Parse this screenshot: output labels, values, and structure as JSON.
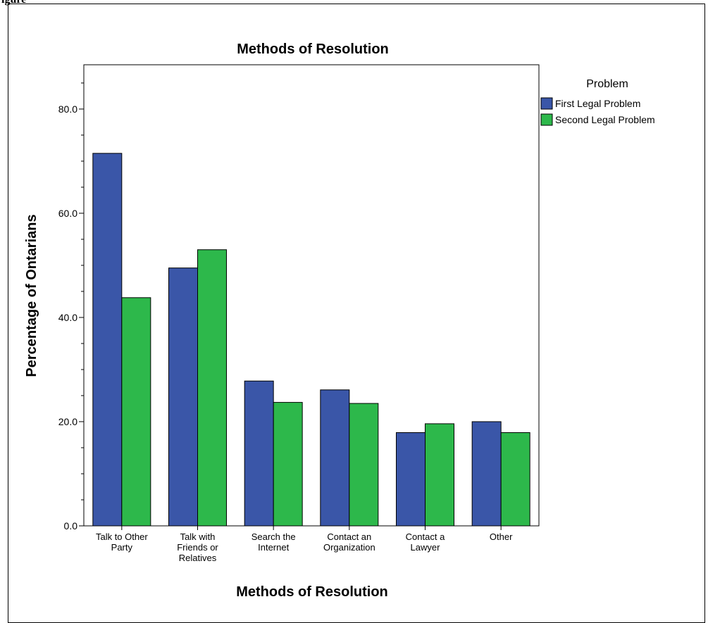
{
  "figure": {
    "caption": "igure"
  },
  "chart_data": {
    "type": "bar",
    "title": "Methods of Resolution",
    "xlabel": "Methods of Resolution",
    "ylabel": "Percentage of Ontarians",
    "categories": [
      [
        "Talk to Other",
        "Party"
      ],
      [
        "Talk with",
        "Friends or",
        "Relatives"
      ],
      [
        "Search the",
        "Internet"
      ],
      [
        "Contact an",
        "Organization"
      ],
      [
        "Contact a",
        "Lawyer"
      ],
      [
        "Other"
      ]
    ],
    "series": [
      {
        "name": "First Legal Problem",
        "color": "#3a56a8",
        "values": [
          71.5,
          49.5,
          27.8,
          26.1,
          17.9,
          20.0
        ]
      },
      {
        "name": "Second Legal Problem",
        "color": "#2db84b",
        "values": [
          43.8,
          53.0,
          23.7,
          23.5,
          19.6,
          17.9
        ]
      }
    ],
    "ylim": [
      0,
      88.5
    ],
    "yticks": [
      0,
      20,
      40,
      60,
      80
    ],
    "ytick_labels": [
      "0.0",
      "20.0",
      "40.0",
      "60.0",
      "80.0"
    ],
    "yminor_step": 5,
    "legend": {
      "title": "Problem",
      "placement": "right"
    },
    "grid": false
  }
}
